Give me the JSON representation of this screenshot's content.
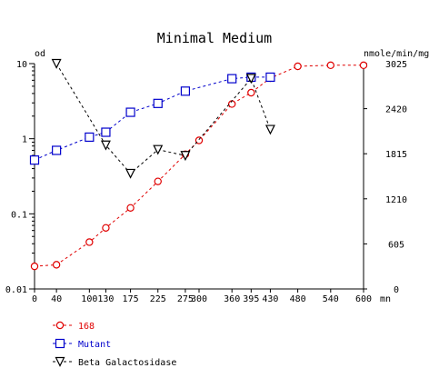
{
  "chart_data": {
    "type": "line",
    "title": "Minimal Medium",
    "xlabel_unit": "mn",
    "y_left_label": "od",
    "y_right_label": "nmole/min/mg",
    "x_ticks": [
      0,
      40,
      100,
      130,
      175,
      225,
      275,
      300,
      360,
      395,
      430,
      480,
      540,
      600
    ],
    "x_tick_labels": [
      "0",
      "40",
      "100",
      "130",
      "175",
      "225",
      "275",
      "300",
      "360",
      "395",
      "430",
      "480",
      "540",
      "600"
    ],
    "xlim": [
      0,
      600
    ],
    "y_left_scale": "log",
    "y_left_lim": [
      0.01,
      10
    ],
    "y_left_ticks": [
      10,
      1,
      0.1,
      0.01
    ],
    "y_left_tick_labels": [
      "10",
      "1",
      "0.1",
      "0.01"
    ],
    "y_right_lim": [
      0,
      3025
    ],
    "y_right_ticks": [
      3025,
      2420,
      1815,
      1210,
      605,
      0
    ],
    "y_right_tick_labels": [
      "3025",
      "2420",
      "1815",
      "1210",
      "605",
      "0"
    ],
    "grid": false,
    "legend_position": "bottom-left",
    "series": [
      {
        "name": "168",
        "axis": "left",
        "marker": "circle",
        "color": "#e00000",
        "x": [
          0,
          40,
          100,
          130,
          175,
          225,
          275,
          300,
          360,
          395,
          430,
          480,
          540,
          600
        ],
        "y": [
          0.02,
          0.021,
          0.042,
          0.065,
          0.12,
          0.27,
          0.62,
          0.95,
          2.9,
          4.1,
          6.4,
          9.2,
          9.5,
          9.5
        ]
      },
      {
        "name": "Mutant",
        "axis": "left",
        "marker": "square",
        "color": "#0000cc",
        "x": [
          0,
          40,
          100,
          130,
          175,
          225,
          275,
          360,
          395,
          430
        ],
        "y": [
          0.52,
          0.7,
          1.05,
          1.22,
          2.25,
          2.95,
          4.3,
          6.3,
          6.6,
          6.6
        ]
      },
      {
        "name": "Beta Galactosidase",
        "axis": "right",
        "marker": "triangle-down",
        "color": "#000000",
        "x": [
          40,
          130,
          175,
          225,
          275,
          395,
          430
        ],
        "y": [
          3025,
          1930,
          1550,
          1870,
          1790,
          2825,
          2140
        ]
      }
    ]
  }
}
